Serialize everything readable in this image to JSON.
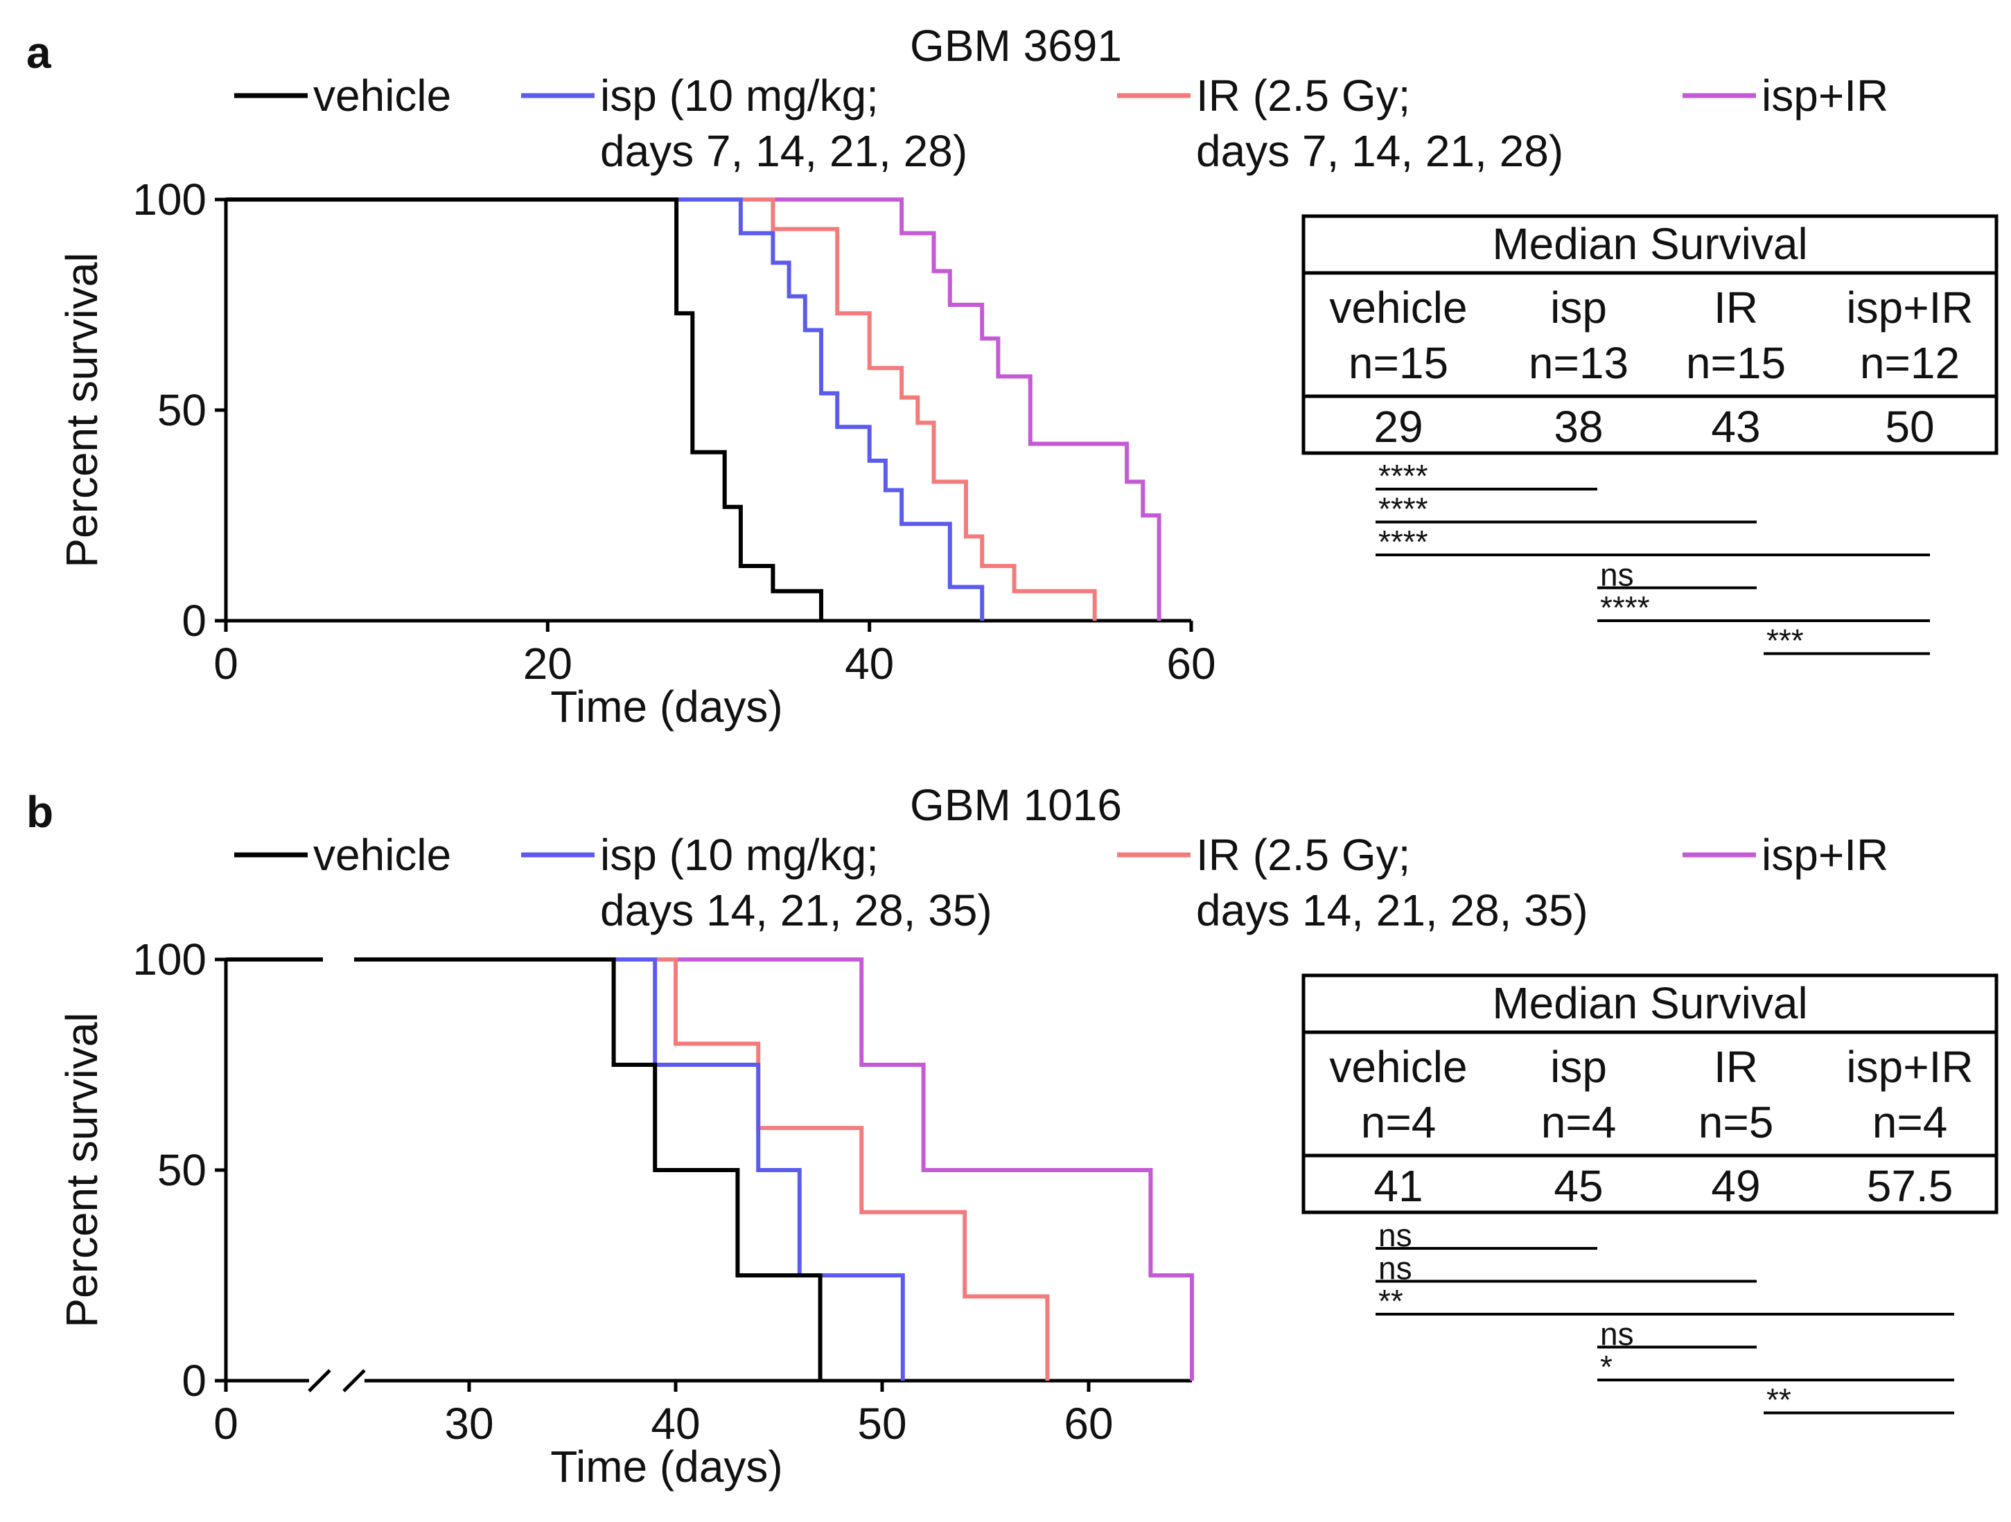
{
  "colors": {
    "vehicle": "#000000",
    "isp": "#5b5bf0",
    "IR": "#f47b7b",
    "isp_IR": "#c55ad6"
  },
  "chart_data": [
    {
      "type": "line",
      "panel_label": "a",
      "title": "GBM 3691",
      "xlabel": "Time (days)",
      "ylabel": "Percent survival",
      "xlim": [
        0,
        60
      ],
      "ylim": [
        0,
        100
      ],
      "xticks": [
        "0",
        "20",
        "40",
        "60"
      ],
      "yticks": [
        "0",
        "50",
        "100"
      ],
      "axis_break": false,
      "legend": [
        {
          "key": "vehicle",
          "line1": "vehicle",
          "line2": ""
        },
        {
          "key": "isp",
          "line1": "isp (10 mg/kg;",
          "line2": "days 7, 14, 21, 28)"
        },
        {
          "key": "IR",
          "line1": "IR (2.5 Gy;",
          "line2": "days 7, 14, 21, 28)"
        },
        {
          "key": "isp_IR",
          "line1": "isp+IR",
          "line2": ""
        }
      ],
      "series": [
        {
          "name": "vehicle",
          "key": "vehicle",
          "x": [
            0,
            28,
            28,
            29,
            29,
            31,
            31,
            32,
            32,
            34,
            34,
            37,
            37
          ],
          "y": [
            100,
            100,
            73,
            73,
            40,
            40,
            27,
            27,
            13,
            13,
            7,
            7,
            0
          ]
        },
        {
          "name": "isp",
          "key": "isp",
          "x": [
            0,
            32,
            32,
            34,
            34,
            35,
            35,
            36,
            36,
            37,
            37,
            38,
            38,
            40,
            40,
            41,
            41,
            42,
            42,
            45,
            45,
            47,
            47
          ],
          "y": [
            100,
            100,
            92,
            92,
            85,
            85,
            77,
            77,
            69,
            69,
            54,
            54,
            46,
            46,
            38,
            38,
            31,
            31,
            23,
            23,
            8,
            8,
            0
          ]
        },
        {
          "name": "IR",
          "key": "IR",
          "x": [
            0,
            34,
            34,
            38,
            38,
            40,
            40,
            42,
            42,
            43,
            43,
            44,
            44,
            46,
            46,
            47,
            47,
            49,
            49,
            54,
            54
          ],
          "y": [
            100,
            100,
            93,
            93,
            73,
            73,
            60,
            60,
            53,
            53,
            47,
            47,
            33,
            33,
            20,
            20,
            13,
            13,
            7,
            7,
            0
          ]
        },
        {
          "name": "isp+IR",
          "key": "isp_IR",
          "x": [
            0,
            42,
            42,
            44,
            44,
            45,
            45,
            47,
            47,
            48,
            48,
            50,
            50,
            56,
            56,
            57,
            57,
            58,
            58
          ],
          "y": [
            100,
            100,
            92,
            92,
            83,
            83,
            75,
            75,
            67,
            67,
            58,
            58,
            42,
            42,
            33,
            33,
            25,
            25,
            0
          ]
        }
      ],
      "median_table": {
        "title": "Median Survival",
        "columns": [
          {
            "name": "vehicle",
            "n": "n=15",
            "median": "29"
          },
          {
            "name": "isp",
            "n": "n=13",
            "median": "38"
          },
          {
            "name": "IR",
            "n": "n=15",
            "median": "43"
          },
          {
            "name": "isp+IR",
            "n": "n=12",
            "median": "50"
          }
        ]
      },
      "significance": [
        {
          "from": "vehicle",
          "to": "isp",
          "label": "****"
        },
        {
          "from": "vehicle",
          "to": "IR",
          "label": "****"
        },
        {
          "from": "vehicle",
          "to": "isp+IR",
          "label": "****"
        },
        {
          "from": "isp",
          "to": "IR",
          "label": "ns"
        },
        {
          "from": "isp",
          "to": "isp+IR",
          "label": "****"
        },
        {
          "from": "IR",
          "to": "isp+IR",
          "label": "***"
        }
      ]
    },
    {
      "type": "line",
      "panel_label": "b",
      "title": "GBM 1016",
      "xlabel": "Time (days)",
      "ylabel": "Percent survival",
      "xlim": [
        25,
        65
      ],
      "ylim": [
        0,
        100
      ],
      "xticks": [
        "0",
        "30",
        "40",
        "50",
        "60"
      ],
      "yticks": [
        "0",
        "50",
        "100"
      ],
      "axis_break": true,
      "legend": [
        {
          "key": "vehicle",
          "line1": "vehicle",
          "line2": ""
        },
        {
          "key": "isp",
          "line1": "isp (10 mg/kg;",
          "line2": "days 14, 21, 28, 35)"
        },
        {
          "key": "IR",
          "line1": "IR (2.5 Gy;",
          "line2": "days 14, 21, 28, 35)"
        },
        {
          "key": "isp_IR",
          "line1": "isp+IR",
          "line2": ""
        }
      ],
      "series": [
        {
          "name": "vehicle",
          "key": "vehicle",
          "x": [
            0,
            37,
            37,
            39,
            39,
            43,
            43,
            47,
            47
          ],
          "y": [
            100,
            100,
            75,
            75,
            50,
            50,
            25,
            25,
            0
          ]
        },
        {
          "name": "isp",
          "key": "isp",
          "x": [
            0,
            39,
            39,
            44,
            44,
            46,
            46,
            51,
            51
          ],
          "y": [
            100,
            100,
            75,
            75,
            50,
            50,
            25,
            25,
            0
          ]
        },
        {
          "name": "IR",
          "key": "IR",
          "x": [
            0,
            40,
            40,
            44,
            44,
            49,
            49,
            54,
            54,
            58,
            58
          ],
          "y": [
            100,
            100,
            80,
            80,
            60,
            60,
            40,
            40,
            20,
            20,
            0
          ]
        },
        {
          "name": "isp+IR",
          "key": "isp_IR",
          "x": [
            0,
            49,
            49,
            52,
            52,
            63,
            63,
            65,
            65
          ],
          "y": [
            100,
            100,
            75,
            75,
            50,
            50,
            25,
            25,
            0
          ]
        }
      ],
      "median_table": {
        "title": "Median Survival",
        "columns": [
          {
            "name": "vehicle",
            "n": "n=4",
            "median": "41"
          },
          {
            "name": "isp",
            "n": "n=4",
            "median": "45"
          },
          {
            "name": "IR",
            "n": "n=5",
            "median": "49"
          },
          {
            "name": "isp+IR",
            "n": "n=4",
            "median": "57.5"
          }
        ]
      },
      "significance": [
        {
          "from": "vehicle",
          "to": "isp",
          "label": "ns"
        },
        {
          "from": "vehicle",
          "to": "IR",
          "label": "ns"
        },
        {
          "from": "vehicle",
          "to": "isp+IR",
          "label": "**"
        },
        {
          "from": "isp",
          "to": "IR",
          "label": "ns"
        },
        {
          "from": "isp",
          "to": "isp+IR",
          "label": "*"
        },
        {
          "from": "IR",
          "to": "isp+IR",
          "label": "**"
        }
      ]
    }
  ]
}
